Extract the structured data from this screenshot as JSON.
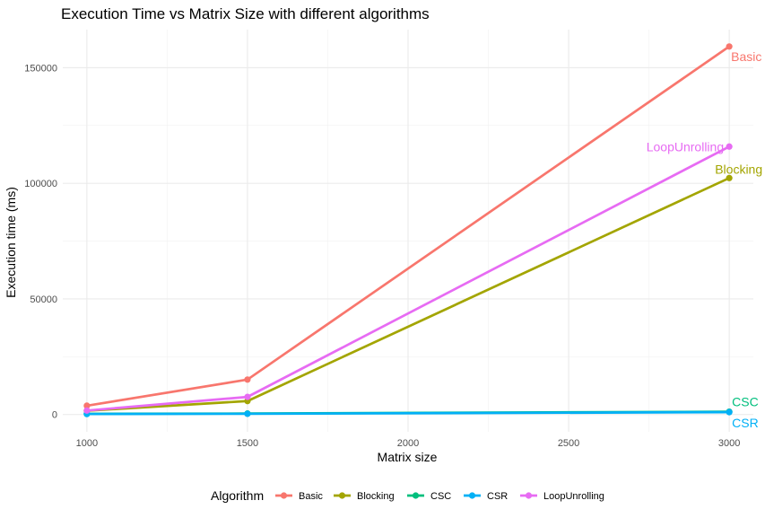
{
  "chart_data": {
    "type": "line",
    "title": "Execution Time vs Matrix Size with different algorithms",
    "xlabel": "Matrix size",
    "ylabel": "Execution time (ms)",
    "x": [
      1000,
      1500,
      3000
    ],
    "xlim": [
      925,
      3075
    ],
    "ylim": [
      -7500,
      166500
    ],
    "xticks": [
      1000,
      1500,
      2000,
      2500,
      3000
    ],
    "yticks": [
      0,
      50000,
      100000,
      150000
    ],
    "grid": true,
    "legend": {
      "title": "Algorithm",
      "position": "bottom"
    },
    "series": [
      {
        "name": "Basic",
        "color": "#F8766D",
        "values": [
          3800,
          15100,
          159200
        ]
      },
      {
        "name": "Blocking",
        "color": "#A3A500",
        "values": [
          1600,
          5800,
          102300
        ]
      },
      {
        "name": "CSC",
        "color": "#00BF7D",
        "values": [
          300,
          400,
          1200
        ]
      },
      {
        "name": "CSR",
        "color": "#00B0F6",
        "values": [
          200,
          300,
          1000
        ]
      },
      {
        "name": "LoopUnrolling",
        "color": "#E76BF3",
        "values": [
          1700,
          7600,
          115900
        ]
      }
    ]
  }
}
